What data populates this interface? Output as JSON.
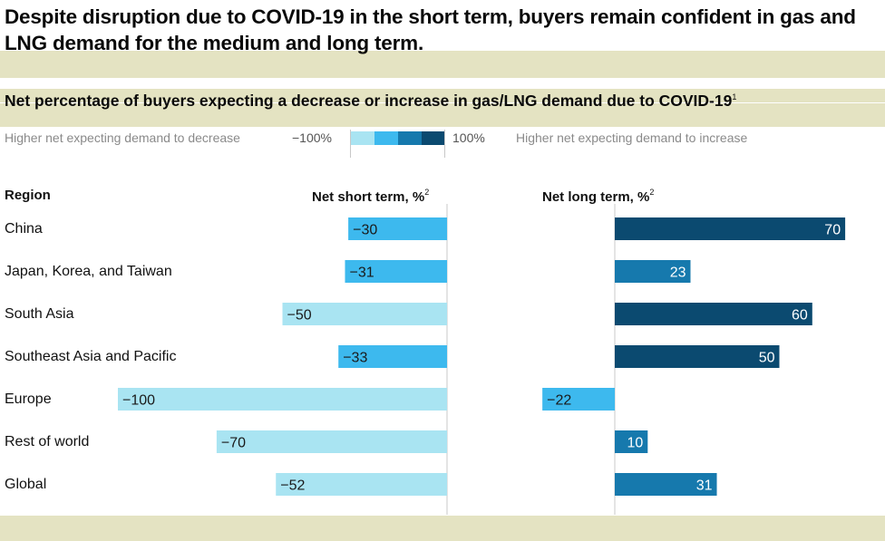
{
  "title": "Despite disruption due to COVID-19 in the short term, buyers remain confident in gas and LNG demand for the medium and long term.",
  "subtitle": "Net percentage of buyers expecting a decrease or increase in gas/LNG demand due to COVID-19",
  "subtitle_footnote": "1",
  "legend": {
    "left_text": "Higher net expecting demand to decrease",
    "min_label": "−100%",
    "max_label": "100%",
    "right_text": "Higher net expecting demand to increase",
    "scale_colors": [
      "#a9e4f2",
      "#3db9ee",
      "#1679ad",
      "#0b4a70"
    ]
  },
  "colors": {
    "band": "#e4e3c2",
    "bar_light": "#a9e4f2",
    "bar_mid": "#3db9ee",
    "bar_blue": "#1679ad",
    "bar_dark": "#0b4a70",
    "axis": "#c8c8c8"
  },
  "chart_data": {
    "type": "bar",
    "orientation": "horizontal",
    "row_header": "Region",
    "categories": [
      "China",
      "Japan, Korea, and Taiwan",
      "South Asia",
      "Southeast Asia and Pacific",
      "Europe",
      "Rest of world",
      "Global"
    ],
    "series": [
      {
        "name": "Net short term, %",
        "footnote": "2",
        "values": [
          -30,
          -31,
          -50,
          -33,
          -100,
          -70,
          -52
        ],
        "labels": [
          "−30",
          "−31",
          "−50",
          "−33",
          "−100",
          "−70",
          "−52"
        ],
        "colors": [
          "#3db9ee",
          "#3db9ee",
          "#a9e4f2",
          "#3db9ee",
          "#a9e4f2",
          "#a9e4f2",
          "#a9e4f2"
        ]
      },
      {
        "name": "Net long term, %",
        "footnote": "2",
        "values": [
          70,
          23,
          60,
          50,
          -22,
          10,
          31
        ],
        "labels": [
          "70",
          "23",
          "60",
          "50",
          "−22",
          "10",
          "31"
        ],
        "colors": [
          "#0b4a70",
          "#1679ad",
          "#0b4a70",
          "#0b4a70",
          "#3db9ee",
          "#1679ad",
          "#1679ad"
        ]
      }
    ],
    "xlim": [
      -100,
      100
    ],
    "grid": false,
    "legend_position": "top"
  }
}
